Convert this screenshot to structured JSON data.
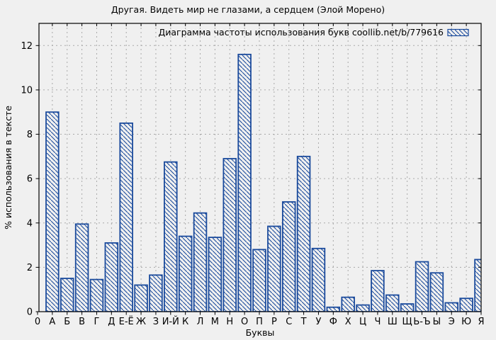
{
  "title": "Другая. Видеть мир не глазами, а сердцем (Элой Морено)",
  "chart_data": {
    "type": "bar",
    "title": "Другая. Видеть мир не глазами, а сердцем (Элой Морено)",
    "legend": "Диаграмма частоты использования букв coollib.net/b/779616",
    "legend_position": "top-right-inside",
    "xlabel": "Буквы",
    "ylabel": "% использования в тексте",
    "x_origin_label": "0",
    "categories": [
      "А",
      "Б",
      "В",
      "Г",
      "Д",
      "Е-Ё",
      "Ж",
      "З",
      "И-Й",
      "К",
      "Л",
      "М",
      "Н",
      "О",
      "П",
      "Р",
      "С",
      "Т",
      "У",
      "Ф",
      "Х",
      "Ц",
      "Ч",
      "Ш",
      "Щ",
      "Ь-Ъ",
      "Ы",
      "Э",
      "Ю",
      "Я"
    ],
    "values": [
      9.0,
      1.5,
      3.95,
      1.45,
      3.1,
      8.5,
      1.2,
      1.65,
      6.75,
      3.4,
      4.45,
      3.35,
      6.9,
      11.6,
      2.8,
      3.85,
      4.95,
      7.0,
      2.85,
      0.2,
      0.65,
      0.3,
      1.85,
      0.75,
      0.35,
      2.25,
      1.75,
      0.4,
      0.6,
      2.35
    ],
    "yticks": [
      0,
      2,
      4,
      6,
      8,
      10,
      12
    ],
    "ylim": [
      0,
      13
    ],
    "grid": true,
    "bar_style": "hatched-diagonal",
    "colors": {
      "bar": "#1a4a9c",
      "grid": "#a9a9a9",
      "axis": "#000000",
      "background": "#f0f0f0",
      "text": "#000000"
    }
  }
}
